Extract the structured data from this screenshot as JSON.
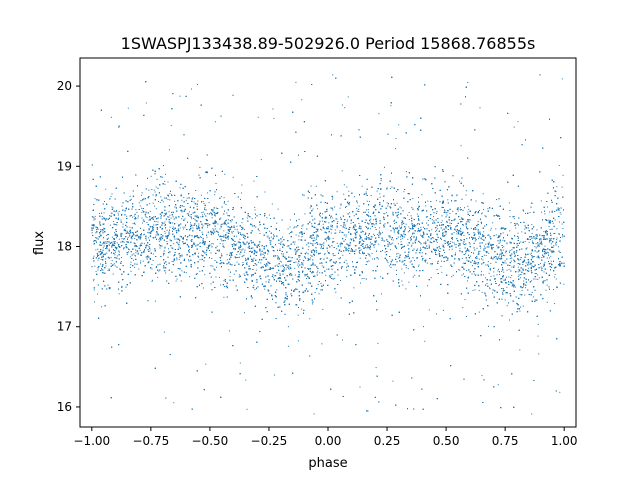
{
  "chart_data": {
    "type": "scatter",
    "title": "1SWASPJ133438.89-502926.0 Period 15868.76855s",
    "xlabel": "phase",
    "ylabel": "flux",
    "xlim": [
      -1.05,
      1.05
    ],
    "ylim": [
      15.75,
      20.35
    ],
    "x_ticks": [
      -1.0,
      -0.75,
      -0.5,
      -0.25,
      0.0,
      0.25,
      0.5,
      0.75,
      1.0
    ],
    "x_tick_labels": [
      "−1.00",
      "−0.75",
      "−0.50",
      "−0.25",
      "0.00",
      "0.25",
      "0.50",
      "0.75",
      "1.00"
    ],
    "y_ticks": [
      16,
      17,
      18,
      19,
      20
    ],
    "y_tick_labels": [
      "16",
      "17",
      "18",
      "19",
      "20"
    ],
    "grid": false,
    "legend": "none",
    "marker_color": "#1f77b4",
    "series": [
      {
        "x_range": [
          -1.0,
          1.0
        ],
        "trend": {
          "phase": [
            -1.0,
            -0.75,
            -0.5,
            -0.25,
            -0.2,
            0.0,
            0.25,
            0.5,
            0.75,
            0.8,
            1.0
          ],
          "flux": [
            18.0,
            18.2,
            18.15,
            17.85,
            17.75,
            18.05,
            18.2,
            18.15,
            17.85,
            17.75,
            18.05
          ]
        },
        "scatter_sd": 0.3,
        "outlier_range": [
          15.9,
          20.15
        ],
        "n_points": 14000
      }
    ]
  }
}
